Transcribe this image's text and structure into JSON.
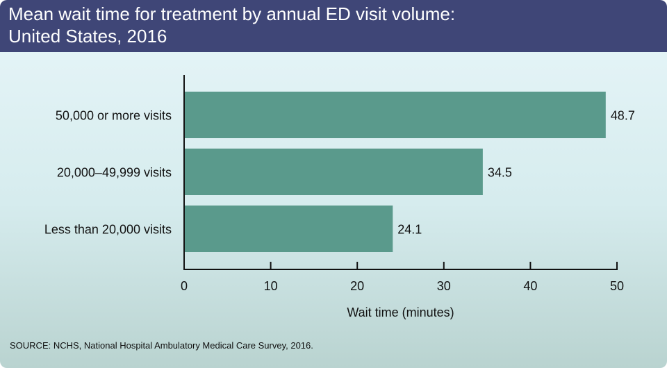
{
  "header": {
    "title_line1": "Mean wait time for treatment by annual ED visit volume:",
    "title_line2": "United States, 2016"
  },
  "source": "SOURCE: NCHS, National Hospital Ambulatory Medical Care Survey, 2016.",
  "colors": {
    "header_bg": "#3f4677",
    "bar": "#5a9a8c",
    "axis": "#111111"
  },
  "chart_data": {
    "type": "bar",
    "orientation": "horizontal",
    "title": "Mean wait time for treatment by annual ED visit volume: United States, 2016",
    "categories": [
      "50,000 or more visits",
      "20,000–49,999 visits",
      "Less than 20,000 visits"
    ],
    "values": [
      48.7,
      34.5,
      24.1
    ],
    "value_labels": [
      "48.7",
      "34.5",
      "24.1"
    ],
    "xlabel": "Wait time (minutes)",
    "ylabel": "",
    "xlim": [
      0,
      50
    ],
    "xticks": [
      0,
      10,
      20,
      30,
      40,
      50
    ],
    "grid": false
  }
}
